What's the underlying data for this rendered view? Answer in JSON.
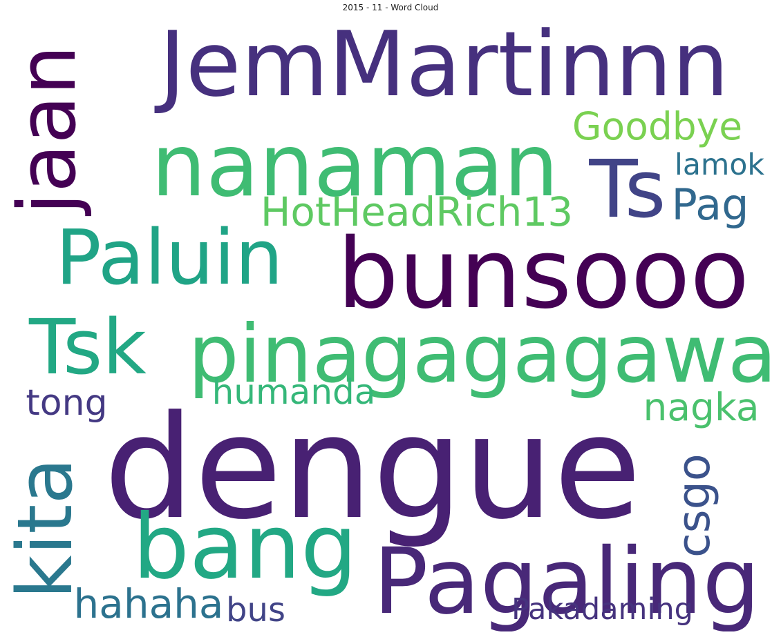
{
  "title": "2015 - 11 - Word Cloud",
  "colors": {
    "background": "#ffffff",
    "title": "#222222"
  },
  "words": [
    {
      "id": "dengue",
      "text": "dengue",
      "color": "#482173"
    },
    {
      "id": "jemmartinnn",
      "text": "JemMartinnn",
      "color": "#46307e"
    },
    {
      "id": "bunsooo",
      "text": "bunsooo",
      "color": "#440154"
    },
    {
      "id": "nanaman",
      "text": "nanaman",
      "color": "#3fbc73"
    },
    {
      "id": "pinagagagawa",
      "text": "pinagagagawa",
      "color": "#3fbc73"
    },
    {
      "id": "bang",
      "text": "bang",
      "color": "#22a884"
    },
    {
      "id": "pagaling",
      "text": "Pagaling",
      "color": "#482878"
    },
    {
      "id": "paluin",
      "text": "Paluin",
      "color": "#20a486"
    },
    {
      "id": "tsk",
      "text": "Tsk",
      "color": "#22a884"
    },
    {
      "id": "ts",
      "text": "Ts",
      "color": "#414487"
    },
    {
      "id": "jaan",
      "text": "jaan",
      "color": "#440154"
    },
    {
      "id": "kita",
      "text": "kita",
      "color": "#2a788e"
    },
    {
      "id": "hotheadrich13",
      "text": "HotHeadRich13",
      "color": "#5ec962"
    },
    {
      "id": "goodbye",
      "text": "Goodbye",
      "color": "#7ad151"
    },
    {
      "id": "pag",
      "text": "Pag",
      "color": "#31688e"
    },
    {
      "id": "lamok",
      "text": "lamok",
      "color": "#2c728e"
    },
    {
      "id": "humanda",
      "text": "humanda",
      "color": "#35b779"
    },
    {
      "id": "nagka",
      "text": "nagka",
      "color": "#4ac16d"
    },
    {
      "id": "tong",
      "text": "tong",
      "color": "#443983"
    },
    {
      "id": "hahaha",
      "text": "hahaha",
      "color": "#2c728e"
    },
    {
      "id": "bus",
      "text": "bus",
      "color": "#414487"
    },
    {
      "id": "pakadaming",
      "text": "Pakadaming",
      "color": "#46337e"
    },
    {
      "id": "csgo",
      "text": "csgo",
      "color": "#3b528b"
    }
  ]
}
